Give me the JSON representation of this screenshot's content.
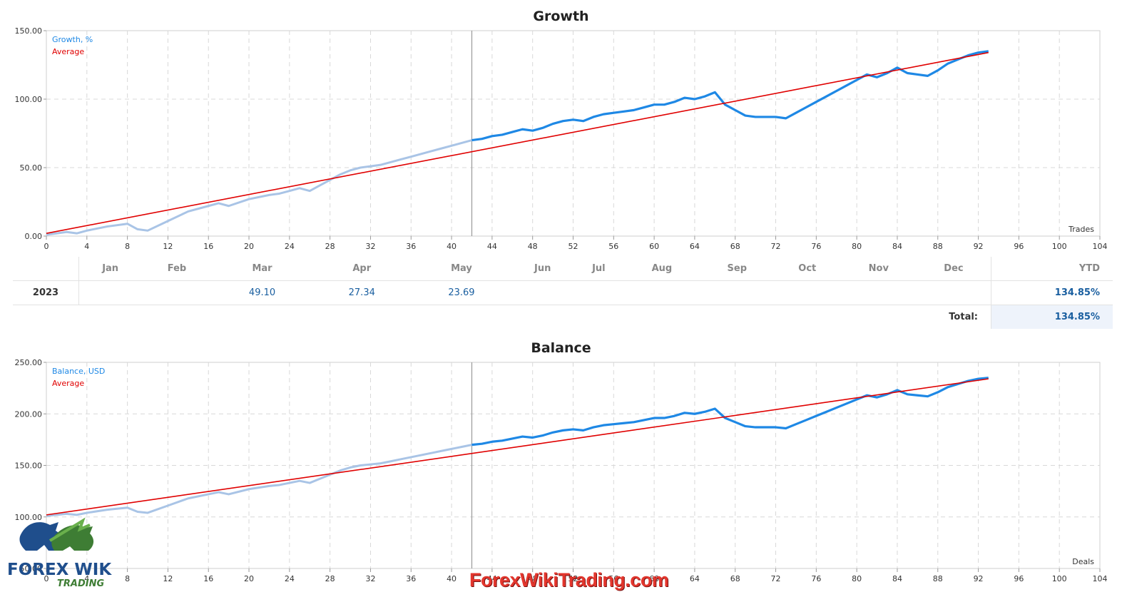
{
  "charts": [
    {
      "title": "Growth",
      "legend": [
        "Growth, %",
        "Average"
      ],
      "x_axis_label": "Trades"
    },
    {
      "title": "Balance",
      "legend": [
        "Balance, USD",
        "Average"
      ],
      "x_axis_label": "Deals"
    }
  ],
  "monthly_table": {
    "months": [
      "Jan",
      "Feb",
      "Mar",
      "Apr",
      "May",
      "Jun",
      "Jul",
      "Aug",
      "Sep",
      "Oct",
      "Nov",
      "Dec"
    ],
    "ytd_header": "YTD",
    "year": "2023",
    "values": [
      "",
      "",
      "49.10",
      "27.34",
      "23.69",
      "",
      "",
      "",
      "",
      "",
      "",
      ""
    ],
    "ytd": "134.85%",
    "total_label": "Total:",
    "total_value": "134.85%"
  },
  "watermark_text": "ForexWikiTrading.com",
  "logo": {
    "text_main": "FOREX WIKI",
    "text_sub": "TRADING"
  },
  "colors": {
    "line": "#1e88e5",
    "line_faded": "#a9c4e6",
    "average": "#e00000",
    "grid": "#d8d8d8"
  },
  "chart_data": [
    {
      "type": "line",
      "title": "Growth",
      "xlabel": "Trades",
      "ylabel": "",
      "xlim": [
        0,
        104
      ],
      "ylim": [
        0,
        150
      ],
      "x_ticks": [
        0,
        4,
        8,
        12,
        16,
        20,
        24,
        28,
        32,
        36,
        40,
        44,
        48,
        52,
        56,
        60,
        64,
        68,
        72,
        76,
        80,
        84,
        88,
        92,
        96,
        100,
        104
      ],
      "y_ticks": [
        "0.00",
        "50.00",
        "100.00",
        "150.00"
      ],
      "y_tick_values": [
        0,
        50,
        100,
        150
      ],
      "grid": true,
      "legend_position": "top-left",
      "split_x": 42,
      "series": [
        {
          "name": "Growth, %",
          "x": [
            0,
            2,
            3,
            4,
            6,
            8,
            9,
            10,
            12,
            14,
            16,
            17,
            18,
            20,
            22,
            23,
            24,
            25,
            26,
            27,
            28,
            29,
            30,
            31,
            32,
            33,
            34,
            35,
            36,
            37,
            38,
            39,
            40,
            41,
            42,
            43,
            44,
            45,
            46,
            47,
            48,
            49,
            50,
            51,
            52,
            53,
            54,
            55,
            56,
            57,
            58,
            59,
            60,
            61,
            62,
            63,
            64,
            65,
            66,
            67,
            68,
            69,
            70,
            71,
            72,
            73,
            74,
            75,
            76,
            77,
            78,
            79,
            80,
            81,
            82,
            83,
            84,
            85,
            86,
            87,
            88,
            89,
            90,
            91,
            92,
            93
          ],
          "y": [
            1,
            3,
            2,
            4,
            7,
            9,
            5,
            4,
            11,
            18,
            22,
            24,
            22,
            27,
            30,
            31,
            33,
            35,
            33,
            37,
            41,
            45,
            48,
            50,
            51,
            52,
            54,
            56,
            58,
            60,
            62,
            64,
            66,
            68,
            70,
            71,
            73,
            74,
            76,
            78,
            77,
            79,
            82,
            84,
            85,
            84,
            87,
            89,
            90,
            91,
            92,
            94,
            96,
            96,
            98,
            101,
            100,
            102,
            105,
            96,
            92,
            88,
            87,
            87,
            87,
            86,
            90,
            94,
            98,
            102,
            106,
            110,
            114,
            118,
            116,
            119,
            123,
            119,
            118,
            117,
            121,
            126,
            129,
            132,
            134,
            135
          ]
        },
        {
          "name": "Average",
          "x": [
            0,
            93
          ],
          "y": [
            2,
            134
          ]
        }
      ]
    },
    {
      "type": "line",
      "title": "Balance",
      "xlabel": "Deals",
      "ylabel": "",
      "xlim": [
        0,
        104
      ],
      "ylim": [
        50,
        250
      ],
      "x_ticks": [
        0,
        4,
        8,
        12,
        16,
        20,
        24,
        28,
        32,
        36,
        40,
        44,
        48,
        52,
        56,
        60,
        64,
        68,
        72,
        76,
        80,
        84,
        88,
        92,
        96,
        100,
        104
      ],
      "y_ticks": [
        "50.00",
        "100.00",
        "150.00",
        "200.00",
        "250.00"
      ],
      "y_tick_values": [
        50,
        100,
        150,
        200,
        250
      ],
      "grid": true,
      "legend_position": "top-left",
      "split_x": 42,
      "series": [
        {
          "name": "Balance, USD",
          "x": [
            0,
            2,
            3,
            4,
            6,
            8,
            9,
            10,
            12,
            14,
            16,
            17,
            18,
            20,
            22,
            23,
            24,
            25,
            26,
            27,
            28,
            29,
            30,
            31,
            32,
            33,
            34,
            35,
            36,
            37,
            38,
            39,
            40,
            41,
            42,
            43,
            44,
            45,
            46,
            47,
            48,
            49,
            50,
            51,
            52,
            53,
            54,
            55,
            56,
            57,
            58,
            59,
            60,
            61,
            62,
            63,
            64,
            65,
            66,
            67,
            68,
            69,
            70,
            71,
            72,
            73,
            74,
            75,
            76,
            77,
            78,
            79,
            80,
            81,
            82,
            83,
            84,
            85,
            86,
            87,
            88,
            89,
            90,
            91,
            92,
            93
          ],
          "y": [
            101,
            103,
            102,
            104,
            107,
            109,
            105,
            104,
            111,
            118,
            122,
            124,
            122,
            127,
            130,
            131,
            133,
            135,
            133,
            137,
            141,
            145,
            148,
            150,
            151,
            152,
            154,
            156,
            158,
            160,
            162,
            164,
            166,
            168,
            170,
            171,
            173,
            174,
            176,
            178,
            177,
            179,
            182,
            184,
            185,
            184,
            187,
            189,
            190,
            191,
            192,
            194,
            196,
            196,
            198,
            201,
            200,
            202,
            205,
            196,
            192,
            188,
            187,
            187,
            187,
            186,
            190,
            194,
            198,
            202,
            206,
            210,
            214,
            218,
            216,
            219,
            223,
            219,
            218,
            217,
            221,
            226,
            229,
            232,
            234,
            235
          ]
        },
        {
          "name": "Average",
          "x": [
            0,
            93
          ],
          "y": [
            102,
            234
          ]
        }
      ]
    }
  ]
}
